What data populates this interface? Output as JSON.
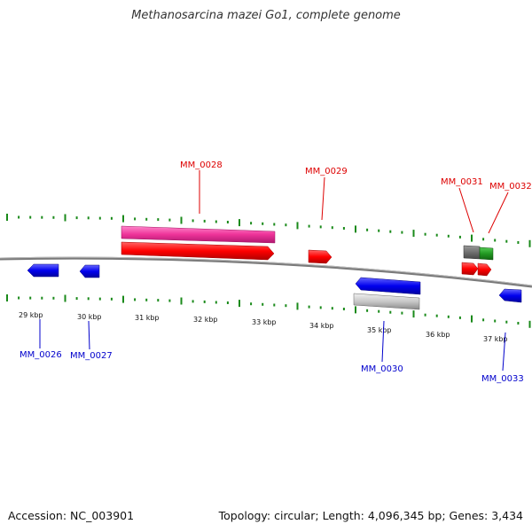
{
  "title": "Methanosarcina mazei Go1, complete genome",
  "footer": {
    "accession": "Accession: NC_003901",
    "summary": "Topology: circular; Length: 4,096,345 bp; Genes: 3,434"
  },
  "colors": {
    "forward_cds": "#ff0000",
    "forward_gene": "#ee3399",
    "reverse_cds": "#0000ee",
    "reverse_gene": "#c0c0c0",
    "rna_gray": "#707070",
    "rna_green": "#229922",
    "tick": "#1a8a1a",
    "backbone": "#808080",
    "forward_label": "#dd0000",
    "reverse_label": "#0000cc"
  },
  "scale": {
    "labels": [
      {
        "text": "29 kbp",
        "kbp": 29
      },
      {
        "text": "30 kbp",
        "kbp": 30
      },
      {
        "text": "31 kbp",
        "kbp": 31
      },
      {
        "text": "32 kbp",
        "kbp": 32
      },
      {
        "text": "33 kbp",
        "kbp": 33
      },
      {
        "text": "34 kbp",
        "kbp": 34
      },
      {
        "text": "35 kbp",
        "kbp": 35
      },
      {
        "text": "36 kbp",
        "kbp": 36
      },
      {
        "text": "37 kbp",
        "kbp": 37
      }
    ]
  },
  "features": [
    {
      "id": "MM_0026",
      "label": "MM_0026",
      "strand": "-",
      "start_kbp": 28.9,
      "end_kbp": 29.2,
      "kind": "cds"
    },
    {
      "id": "MM_0027",
      "label": "MM_0027",
      "strand": "-",
      "start_kbp": 29.85,
      "end_kbp": 30.05,
      "kind": "cds"
    },
    {
      "id": "MM_0028",
      "label": "MM_0028",
      "strand": "+",
      "start_kbp": 30.6,
      "end_kbp": 33.2,
      "kind": "cds_gene"
    },
    {
      "id": "MM_0029",
      "label": "MM_0029",
      "strand": "+",
      "start_kbp": 33.95,
      "end_kbp": 34.35,
      "kind": "cds"
    },
    {
      "id": "MM_0030",
      "label": "MM_0030",
      "strand": "-",
      "start_kbp": 34.7,
      "end_kbp": 35.8,
      "kind": "cds_gene"
    },
    {
      "id": "MM_0031",
      "label": "MM_0031",
      "strand": "+",
      "start_kbp": 36.5,
      "end_kbp": 36.8,
      "kind": "cds_rna"
    },
    {
      "id": "MM_0032",
      "label": "MM_0032",
      "strand": "+",
      "start_kbp": 36.8,
      "end_kbp": 37.02,
      "kind": "cds_rna"
    },
    {
      "id": "MM_0033",
      "label": "MM_0033",
      "strand": "-",
      "start_kbp": 37.4,
      "end_kbp": 37.75,
      "kind": "cds"
    }
  ]
}
